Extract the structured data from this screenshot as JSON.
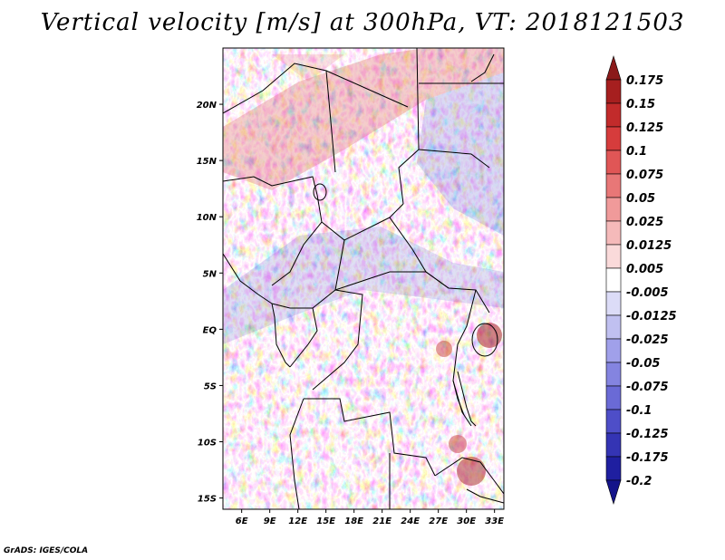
{
  "title": "Vertical velocity [m/s] at 300hPa, VT: 2018121503",
  "footer": "GrADS: IGES/COLA",
  "map": {
    "region": "Central Africa",
    "lon_range": [
      4,
      34
    ],
    "lat_range": [
      -16,
      25
    ],
    "lon_ticks": [
      "6E",
      "9E",
      "12E",
      "15E",
      "18E",
      "21E",
      "24E",
      "27E",
      "30E",
      "33E"
    ],
    "lat_ticks": [
      "20N",
      "15N",
      "10N",
      "5N",
      "EQ",
      "5S",
      "10S",
      "15S"
    ]
  },
  "colorbar": {
    "labels": [
      "0.175",
      "0.15",
      "0.125",
      "0.1",
      "0.075",
      "0.05",
      "0.025",
      "0.0125",
      "0.005",
      "-0.005",
      "-0.0125",
      "-0.025",
      "-0.05",
      "-0.075",
      "-0.1",
      "-0.125",
      "-0.175",
      "-0.2"
    ],
    "colors": [
      "#8b1a1a",
      "#a61f1f",
      "#c22b2b",
      "#d63c3c",
      "#e05656",
      "#e87777",
      "#f09a9a",
      "#f5baba",
      "#fadada",
      "#ffffff",
      "#dcdcf7",
      "#c0c0f0",
      "#a0a0ea",
      "#8484e0",
      "#6a6ad6",
      "#4e4ec8",
      "#3434b4",
      "#1f1fa0",
      "#14148a"
    ]
  }
}
